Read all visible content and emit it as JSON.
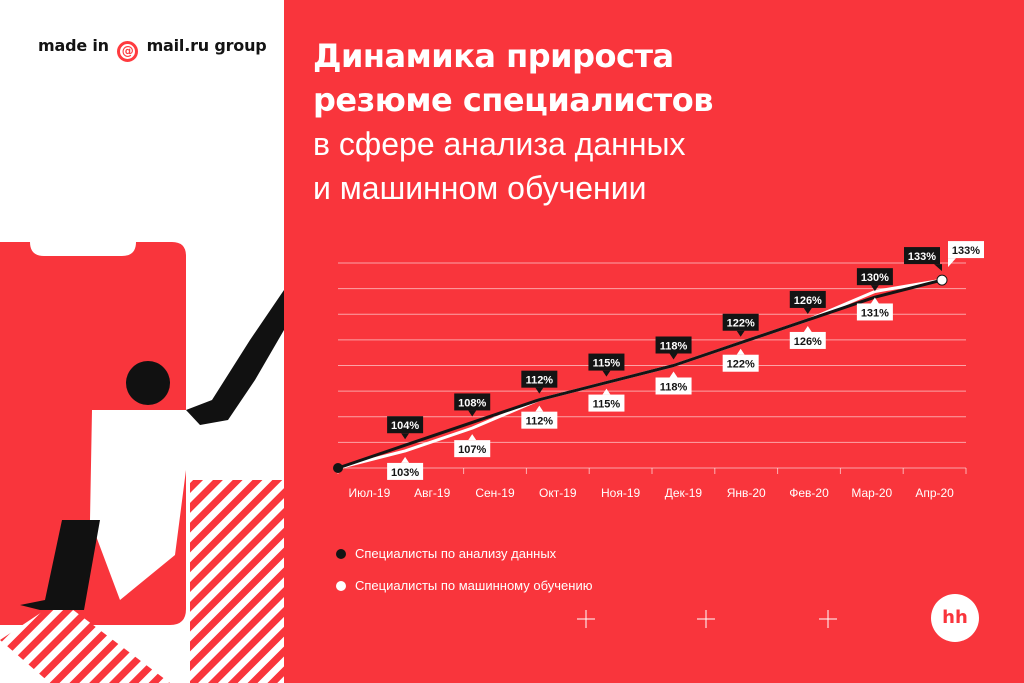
{
  "brand": {
    "text_before": "made in",
    "at_symbol": "@",
    "text_after": "mail.ru group"
  },
  "title": {
    "line1": "Динамика прироста",
    "line2": "резюме специалистов",
    "line3": "в сфере анализа данных",
    "line4": "и машинном обучении"
  },
  "logo": {
    "text": "hh"
  },
  "colors": {
    "background_red": "#f9353c",
    "series_dark": "#141414",
    "series_light": "#ffffff"
  },
  "chart_data": {
    "type": "line",
    "x": [
      "Июл-19",
      "Авг-19",
      "Сен-19",
      "Окт-19",
      "Ноя-19",
      "Дек-19",
      "Янв-20",
      "Фев-20",
      "Мар-20",
      "Апр-20"
    ],
    "series": [
      {
        "name": "Специалисты по анализу данных",
        "color": "#141414",
        "values": [
          100,
          104,
          108,
          112,
          115,
          118,
          122,
          126,
          130,
          133
        ],
        "labels": [
          "",
          "104%",
          "108%",
          "112%",
          "115%",
          "118%",
          "122%",
          "126%",
          "130%",
          "133%"
        ]
      },
      {
        "name": "Специалисты по машинному обучению",
        "color": "#ffffff",
        "values": [
          100,
          103,
          107,
          112,
          115,
          118,
          122,
          126,
          131,
          133
        ],
        "labels": [
          "",
          "103%",
          "107%",
          "112%",
          "115%",
          "118%",
          "122%",
          "126%",
          "131%",
          "133%"
        ]
      }
    ],
    "title": "",
    "xlabel": "",
    "ylabel": "",
    "ylim": [
      100,
      136
    ],
    "grid": true,
    "legend_position": "bottom-left"
  }
}
